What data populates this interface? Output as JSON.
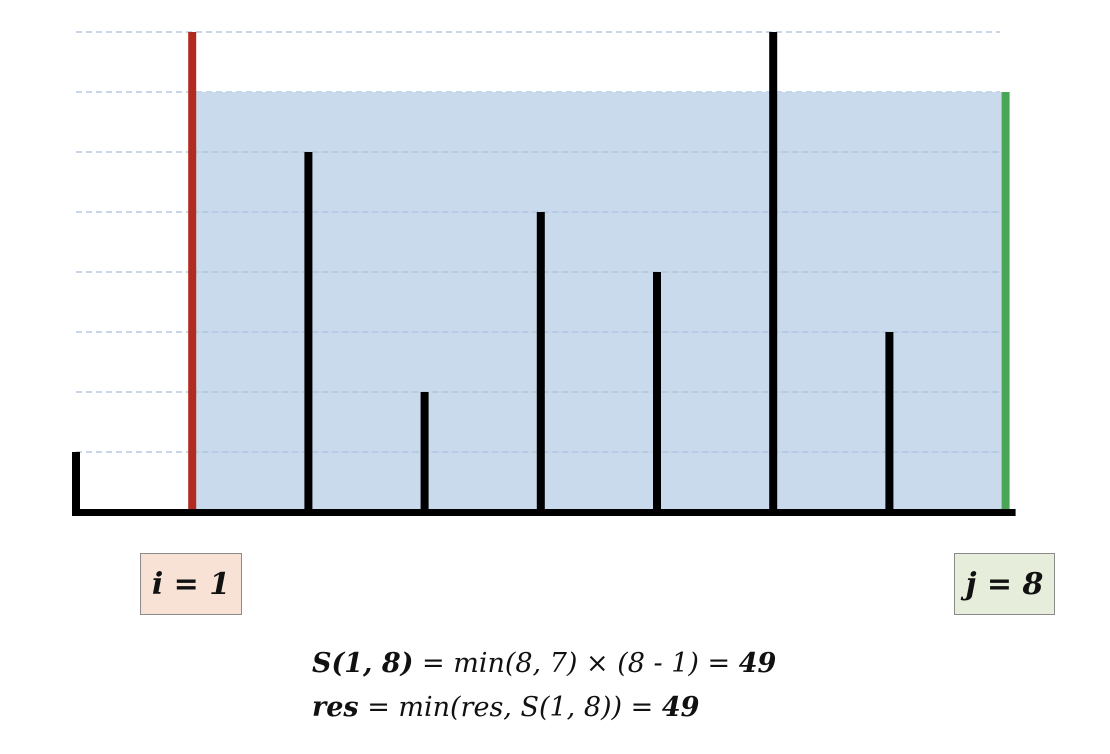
{
  "heights": [
    1,
    8,
    6,
    2,
    5,
    4,
    8,
    3,
    7
  ],
  "max_height": 8,
  "pointers": {
    "i": {
      "index": 1,
      "color": "#b22b20",
      "label": "i = 1",
      "box_fill": "#f8e2d6"
    },
    "j": {
      "index": 8,
      "color": "#4aa657",
      "label": "j = 8",
      "box_fill": "#e6eedb"
    }
  },
  "water": {
    "level": 7,
    "from_index": 1,
    "to_index": 8,
    "color": "#c3d6ea"
  },
  "colors": {
    "bar": "#000000",
    "grid": "#a9bedc",
    "axis": "#000000"
  },
  "formula": {
    "line1": {
      "lhs": "S(1, 8)",
      "mid": " = min(8, 7) × (8 - 1) = ",
      "result": "49"
    },
    "line2": {
      "lhs": "res",
      "mid": " = min(res, S(1, 8)) = ",
      "result": "49"
    }
  }
}
